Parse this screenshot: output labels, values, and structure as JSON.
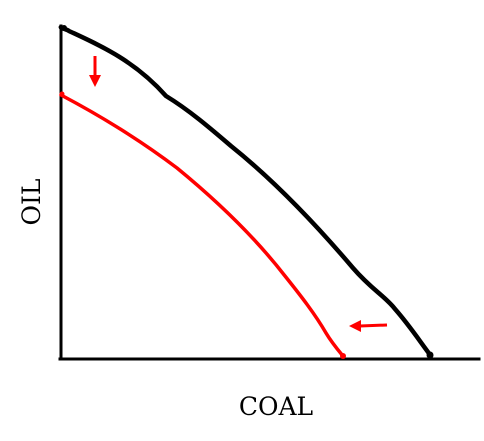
{
  "diagram": {
    "axes": {
      "x_label": "COAL",
      "y_label": "OIL"
    },
    "curves": [
      {
        "name": "original-frontier",
        "color": "#000000"
      },
      {
        "name": "shifted-frontier",
        "color": "#ff0000"
      }
    ],
    "arrows": [
      {
        "name": "downward-shift-arrow",
        "direction": "down",
        "color": "#ff0000"
      },
      {
        "name": "leftward-shift-arrow",
        "direction": "left",
        "color": "#ff0000"
      }
    ],
    "colors": {
      "axis": "#000000",
      "original": "#000000",
      "shifted": "#ff0000"
    }
  }
}
